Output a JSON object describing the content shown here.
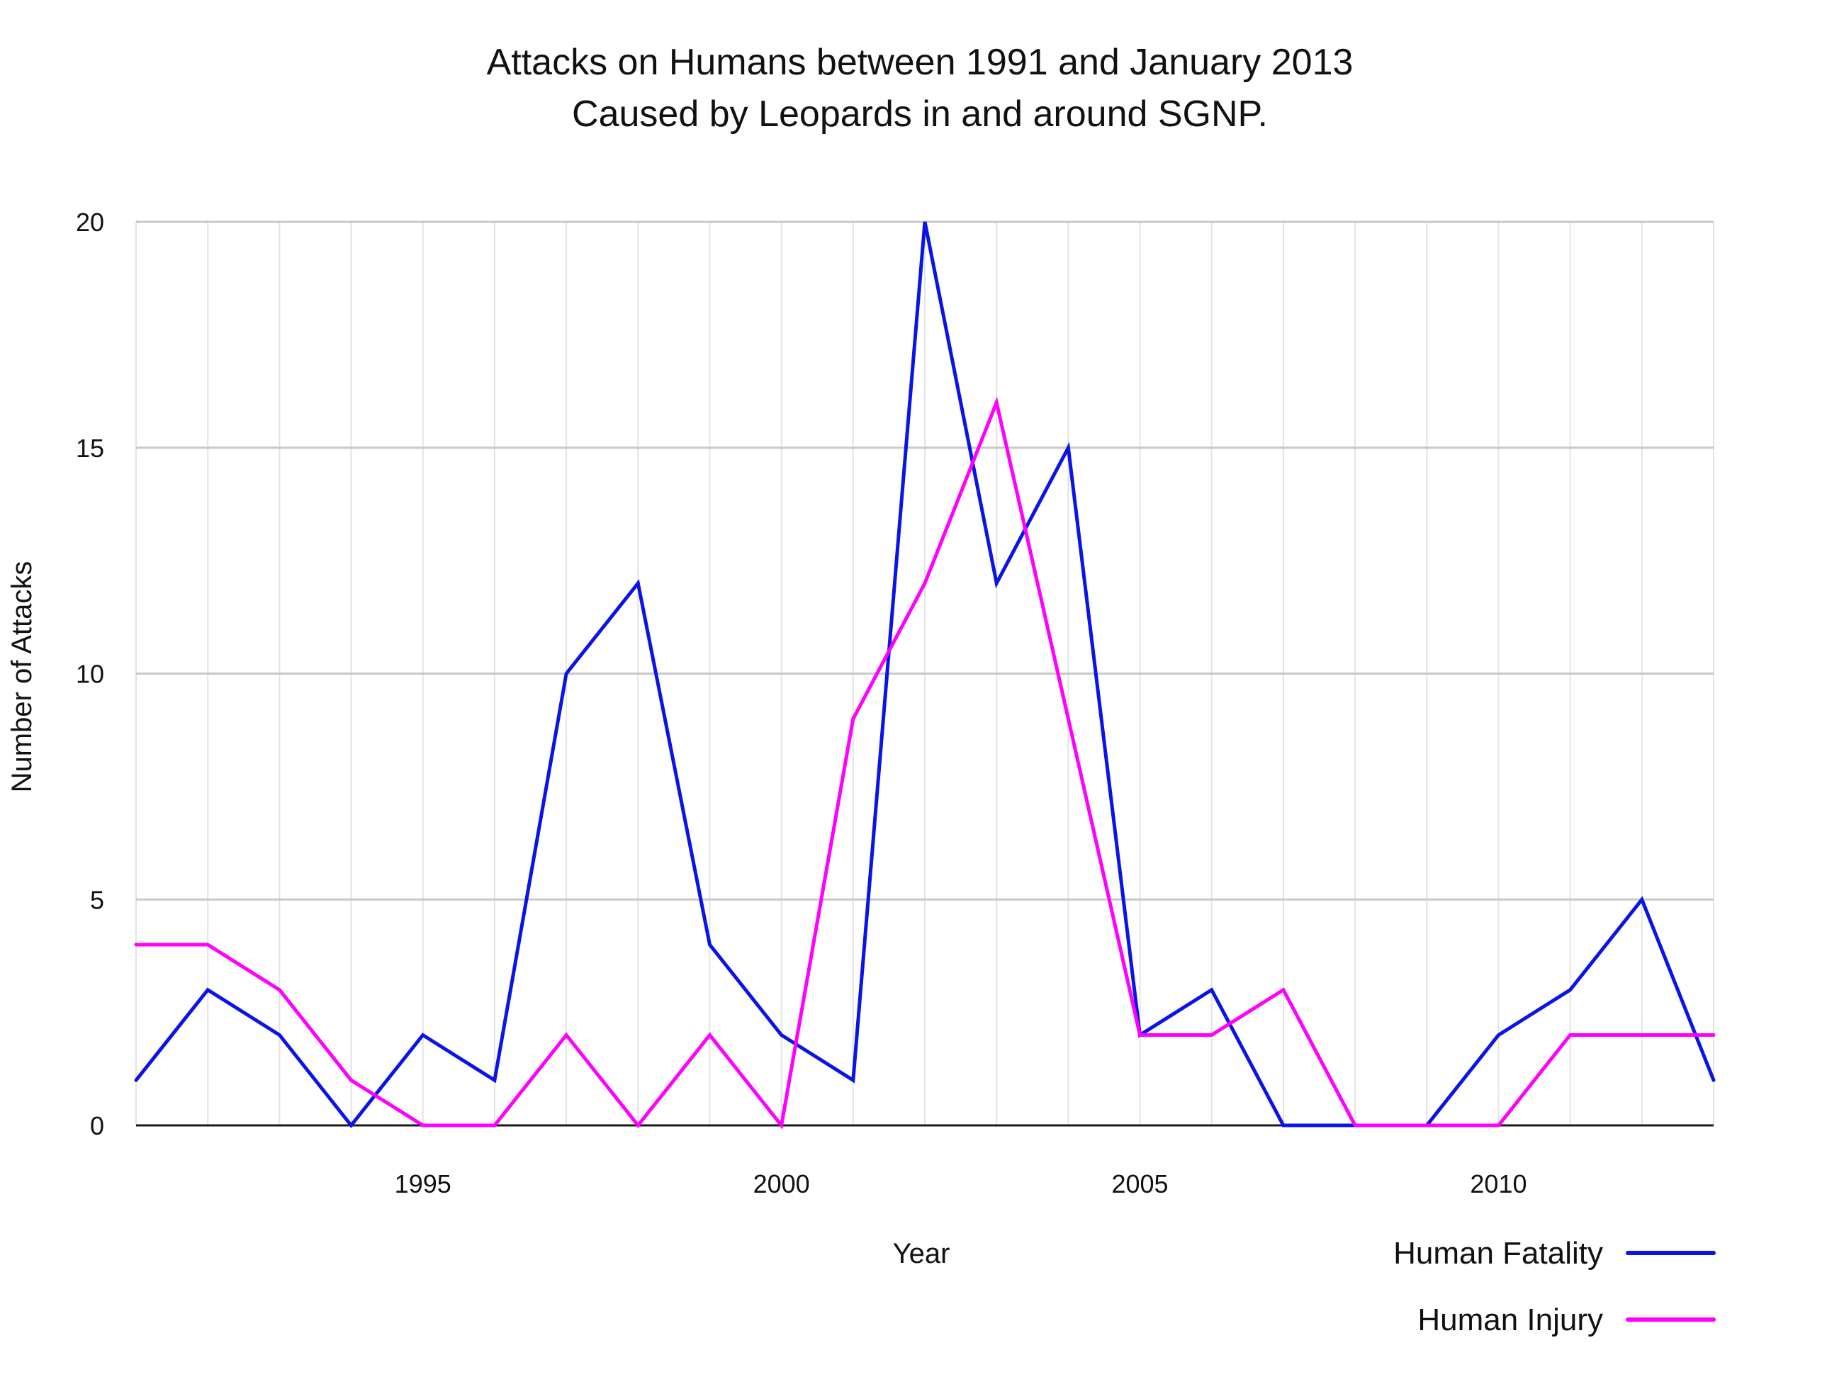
{
  "chart_data": {
    "type": "line",
    "title_lines": [
      "Attacks on Humans between 1991 and January 2013",
      "Caused by Leopards in and around SGNP."
    ],
    "xlabel": "Year",
    "ylabel": "Number of Attacks",
    "x": [
      1991,
      1992,
      1993,
      1994,
      1995,
      1996,
      1997,
      1998,
      1999,
      2000,
      2001,
      2002,
      2003,
      2004,
      2005,
      2006,
      2007,
      2008,
      2009,
      2010,
      2011,
      2012,
      2013
    ],
    "xlim": [
      1991,
      2013
    ],
    "ylim": [
      0,
      20
    ],
    "x_ticks": [
      1995,
      2000,
      2005,
      2010
    ],
    "x_tick_labels": [
      "1995",
      "2000",
      "2005",
      "2010"
    ],
    "y_ticks": [
      0,
      5,
      10,
      15,
      20
    ],
    "y_tick_labels": [
      "0",
      "5",
      "10",
      "15",
      "20"
    ],
    "grid": true,
    "legend_position": "bottom-right",
    "series": [
      {
        "name": "Human Fatality",
        "color": "#0a14e6",
        "values": [
          1,
          3,
          2,
          0,
          2,
          1,
          10,
          12,
          4,
          2,
          1,
          20,
          12,
          15,
          2,
          3,
          0,
          0,
          0,
          2,
          3,
          5,
          1
        ]
      },
      {
        "name": "Human Injury",
        "color": "#ff00ff",
        "values": [
          4,
          4,
          3,
          1,
          0,
          0,
          2,
          0,
          2,
          0,
          9,
          12,
          16,
          9,
          2,
          2,
          3,
          0,
          0,
          0,
          2,
          2,
          2
        ]
      }
    ]
  }
}
